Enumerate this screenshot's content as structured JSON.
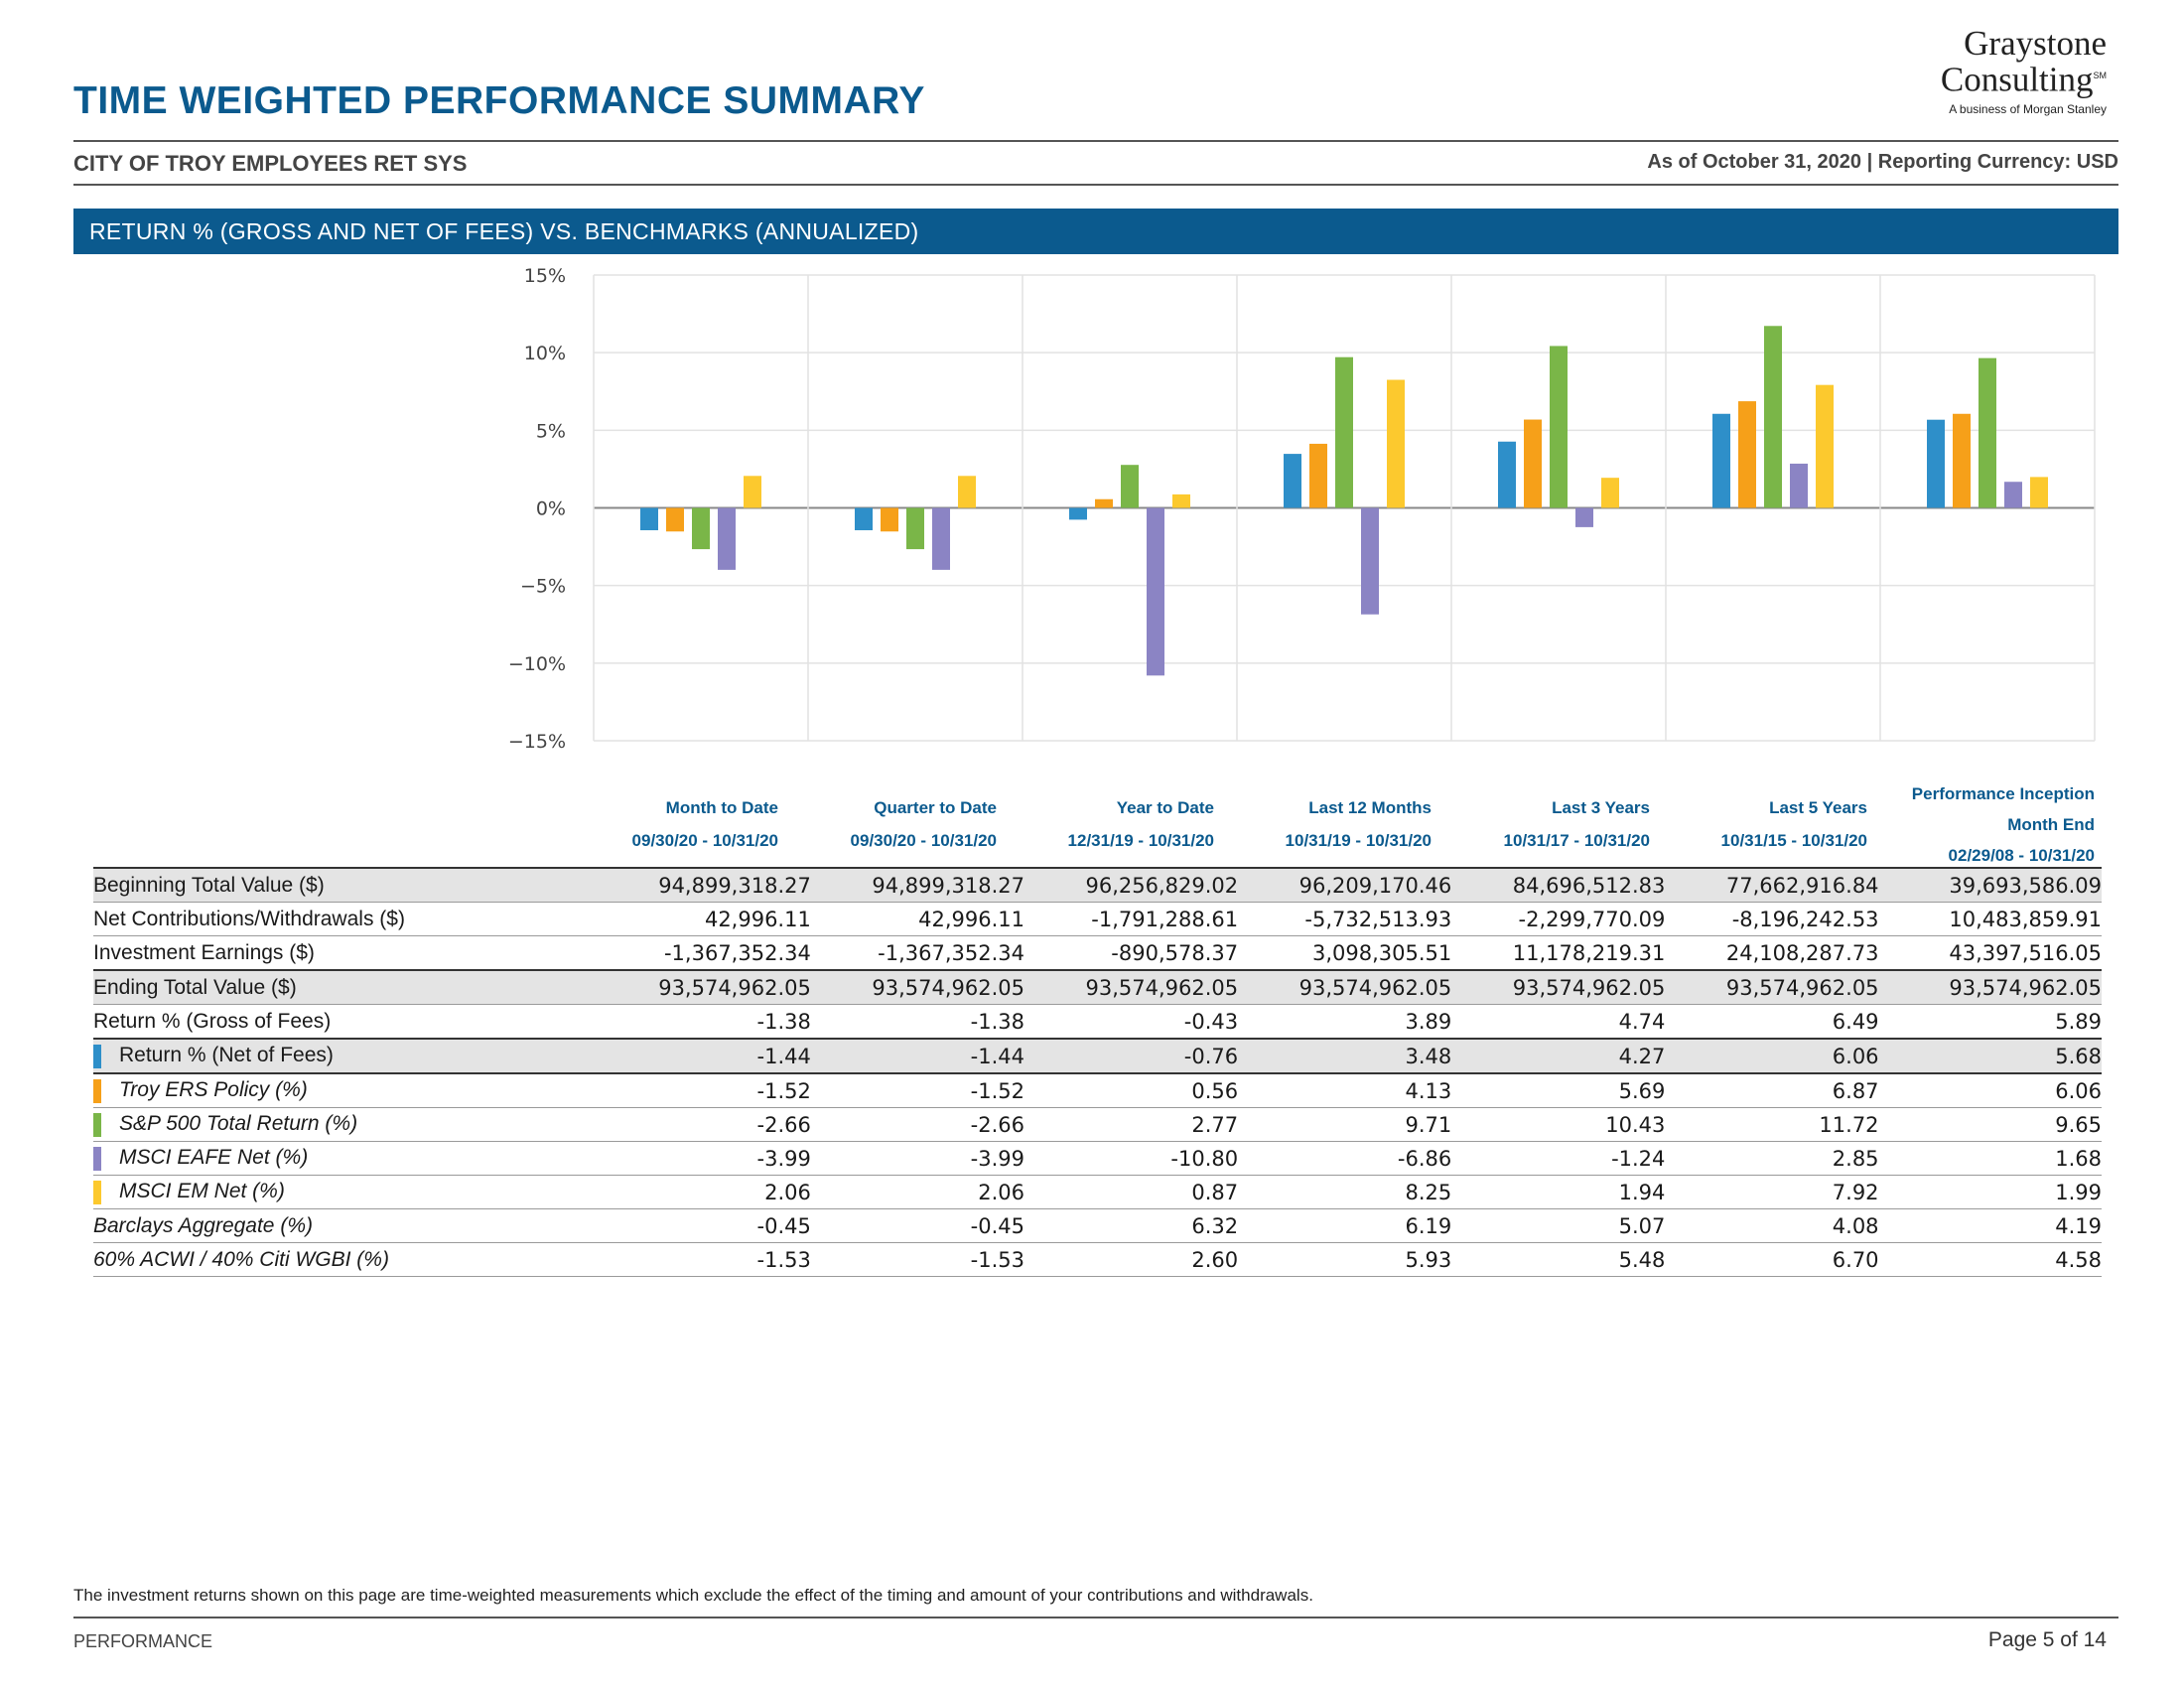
{
  "header": {
    "title": "TIME WEIGHTED PERFORMANCE SUMMARY",
    "logo_line1": "Graystone",
    "logo_line2": "Consulting",
    "logo_mark": "SM",
    "logo_sub": "A business of Morgan Stanley",
    "client": "CITY OF TROY EMPLOYEES RET SYS",
    "as_of": "As of October 31, 2020 | Reporting Currency: USD"
  },
  "section": {
    "title": "RETURN % (GROSS AND NET OF FEES) VS. BENCHMARKS (ANNUALIZED)"
  },
  "chart_data": {
    "type": "bar",
    "y_ticks": [
      "15%",
      "10%",
      "5%",
      "0%",
      "−5%",
      "−10%",
      "−15%"
    ],
    "ylim": [
      -15,
      15
    ],
    "grid": true,
    "categories": [
      "Month to Date",
      "Quarter to Date",
      "Year to Date",
      "Last 12 Months",
      "Last 3 Years",
      "Last 5 Years",
      "Performance Inception"
    ],
    "series": [
      {
        "name": "Return % (Net of Fees)",
        "color": "#2e8fc9",
        "values": [
          -1.44,
          -1.44,
          -0.76,
          3.48,
          4.27,
          6.06,
          5.68
        ]
      },
      {
        "name": "Troy ERS Policy (%)",
        "color": "#f6a019",
        "values": [
          -1.52,
          -1.52,
          0.56,
          4.13,
          5.69,
          6.87,
          6.06
        ]
      },
      {
        "name": "S&P 500 Total Return (%)",
        "color": "#7ab648",
        "values": [
          -2.66,
          -2.66,
          2.77,
          9.71,
          10.43,
          11.72,
          9.65
        ]
      },
      {
        "name": "MSCI EAFE Net (%)",
        "color": "#8b84c4",
        "values": [
          -3.99,
          -3.99,
          -10.8,
          -6.86,
          -1.24,
          2.85,
          1.68
        ]
      },
      {
        "name": "MSCI EM Net (%)",
        "color": "#fcc92e",
        "values": [
          2.06,
          2.06,
          0.87,
          8.25,
          1.94,
          7.92,
          1.99
        ]
      }
    ]
  },
  "columns": [
    {
      "line1": "Month to Date",
      "line2": "09/30/20 - 10/31/20"
    },
    {
      "line1": "Quarter to Date",
      "line2": "09/30/20 - 10/31/20"
    },
    {
      "line1": "Year to Date",
      "line2": "12/31/19 - 10/31/20"
    },
    {
      "line1": "Last 12 Months",
      "line2": "10/31/19 - 10/31/20"
    },
    {
      "line1": "Last 3 Years",
      "line2": "10/31/17 - 10/31/20"
    },
    {
      "line1": "Last 5 Years",
      "line2": "10/31/15 - 10/31/20"
    },
    {
      "line1": "Performance Inception",
      "line1b": "Month End",
      "line2": "02/29/08 - 10/31/20"
    }
  ],
  "rows": [
    {
      "label": "Beginning Total Value ($)",
      "values": [
        "94,899,318.27",
        "94,899,318.27",
        "96,256,829.02",
        "96,209,170.46",
        "84,696,512.83",
        "77,662,916.84",
        "39,693,586.09"
      ]
    },
    {
      "label": "Net Contributions/Withdrawals ($)",
      "values": [
        "42,996.11",
        "42,996.11",
        "-1,791,288.61",
        "-5,732,513.93",
        "-2,299,770.09",
        "-8,196,242.53",
        "10,483,859.91"
      ]
    },
    {
      "label": "Investment Earnings ($)",
      "values": [
        "-1,367,352.34",
        "-1,367,352.34",
        "-890,578.37",
        "3,098,305.51",
        "11,178,219.31",
        "24,108,287.73",
        "43,397,516.05"
      ]
    },
    {
      "label": "Ending Total Value ($)",
      "values": [
        "93,574,962.05",
        "93,574,962.05",
        "93,574,962.05",
        "93,574,962.05",
        "93,574,962.05",
        "93,574,962.05",
        "93,574,962.05"
      ]
    },
    {
      "label": "Return % (Gross of Fees)",
      "values": [
        "-1.38",
        "-1.38",
        "-0.43",
        "3.89",
        "4.74",
        "6.49",
        "5.89"
      ]
    },
    {
      "label": "Return % (Net of Fees)",
      "values": [
        "-1.44",
        "-1.44",
        "-0.76",
        "3.48",
        "4.27",
        "6.06",
        "5.68"
      ]
    },
    {
      "label": "Troy ERS Policy (%)",
      "values": [
        "-1.52",
        "-1.52",
        "0.56",
        "4.13",
        "5.69",
        "6.87",
        "6.06"
      ]
    },
    {
      "label": "S&P 500 Total Return (%)",
      "values": [
        "-2.66",
        "-2.66",
        "2.77",
        "9.71",
        "10.43",
        "11.72",
        "9.65"
      ]
    },
    {
      "label": "MSCI EAFE Net (%)",
      "values": [
        "-3.99",
        "-3.99",
        "-10.80",
        "-6.86",
        "-1.24",
        "2.85",
        "1.68"
      ]
    },
    {
      "label": "MSCI EM Net (%)",
      "values": [
        "2.06",
        "2.06",
        "0.87",
        "8.25",
        "1.94",
        "7.92",
        "1.99"
      ]
    },
    {
      "label": "Barclays Aggregate (%)",
      "values": [
        "-0.45",
        "-0.45",
        "6.32",
        "6.19",
        "5.07",
        "4.08",
        "4.19"
      ]
    },
    {
      "label": "60% ACWI / 40% Citi WGBI (%)",
      "values": [
        "-1.53",
        "-1.53",
        "2.60",
        "5.93",
        "5.48",
        "6.70",
        "4.58"
      ]
    }
  ],
  "footer": {
    "note": "The investment returns shown on this page are time-weighted measurements which exclude the effect of the timing and amount of your contributions and withdrawals.",
    "section": "PERFORMANCE",
    "page": "Page 5 of 14"
  }
}
